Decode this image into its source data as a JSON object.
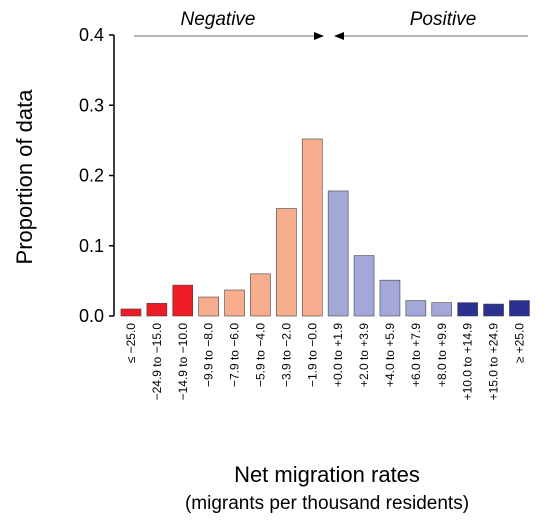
{
  "chart_data": {
    "type": "bar",
    "categories": [
      "≤ −25.0",
      "−24.9 to −15.0",
      "−14.9 to −10.0",
      "−9.9 to −8.0",
      "−7.9 to −6.0",
      "−5.9 to −4.0",
      "−3.9 to −2.0",
      "−1.9 to −0.0",
      "+0.0 to +1.9",
      "+2.0 to +3.9",
      "+4.0 to +5.9",
      "+6.0 to +7.9",
      "+8.0 to +9.9",
      "+10.0 to +14.9",
      "+15.0 to +24.9",
      "≥ +25.0"
    ],
    "values": [
      0.01,
      0.018,
      0.044,
      0.027,
      0.037,
      0.06,
      0.153,
      0.252,
      0.178,
      0.086,
      0.051,
      0.022,
      0.019,
      0.019,
      0.017,
      0.022
    ],
    "bar_colors": [
      "#ee1c25",
      "#ee1c25",
      "#ee1c25",
      "#f8ad8f",
      "#f8ad8f",
      "#f8ad8f",
      "#f8ad8f",
      "#f8ad8f",
      "#a3a8d8",
      "#a3a8d8",
      "#a3a8d8",
      "#a3a8d8",
      "#a3a8d8",
      "#2a3191",
      "#2a3191",
      "#2a3191"
    ],
    "ylim": [
      0,
      0.4
    ],
    "yticks": [
      "0.0",
      "0.1",
      "0.2",
      "0.3",
      "0.4"
    ],
    "ylabel": "Proportion of data",
    "xlabel": "Net migration rates",
    "xlabel_sub": "(migrants per thousand residents)",
    "annotations": {
      "negative": "Negative",
      "positive": "Positive"
    },
    "grid": false
  }
}
